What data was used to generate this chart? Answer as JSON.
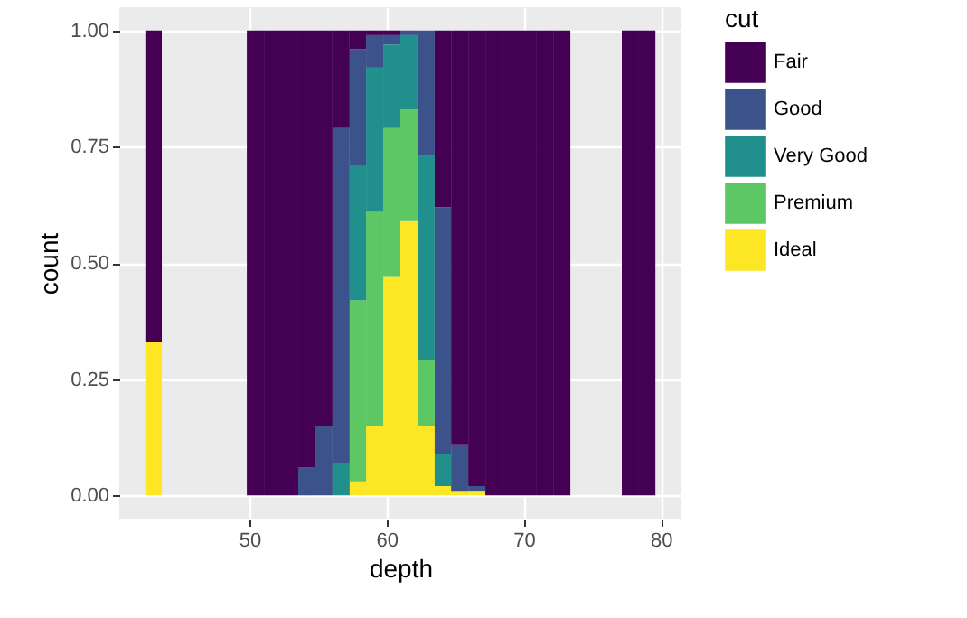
{
  "chart_data": {
    "type": "bar",
    "xlabel": "depth",
    "ylabel": "count",
    "legend_title": "cut",
    "stacked": true,
    "grid": true,
    "legend": "right",
    "x": [
      43.0,
      44.2,
      45.5,
      46.7,
      48.0,
      49.2,
      50.4,
      51.7,
      52.9,
      54.2,
      55.4,
      56.7,
      57.9,
      59.1,
      60.4,
      61.6,
      62.9,
      64.1,
      65.3,
      66.6,
      67.8,
      69.1,
      70.3,
      71.6,
      72.8,
      74.0,
      75.3,
      76.5,
      77.8,
      79.0
    ],
    "xlim": [
      40.5,
      81.5
    ],
    "xticks": [
      50,
      60,
      70,
      80
    ],
    "ylim": [
      -0.05,
      1.05
    ],
    "yticks": [
      {
        "value": 0,
        "label": "0.00"
      },
      {
        "value": 0.25,
        "label": "0.25"
      },
      {
        "value": 0.5,
        "label": "0.50"
      },
      {
        "value": 0.75,
        "label": "0.75"
      },
      {
        "value": 1,
        "label": "1.00"
      }
    ],
    "series": [
      {
        "name": "Ideal",
        "color": "#fde725",
        "values": [
          0.33,
          0,
          0,
          0,
          0,
          0,
          0,
          0,
          0,
          0,
          0,
          0,
          0.03,
          0.15,
          0.47,
          0.59,
          0.15,
          0.02,
          0.01,
          0.01,
          0,
          0,
          0,
          0,
          0,
          0,
          0,
          0,
          0,
          0
        ]
      },
      {
        "name": "Premium",
        "color": "#5dc863",
        "values": [
          0,
          0,
          0,
          0,
          0,
          0,
          0,
          0,
          0,
          0,
          0,
          0,
          0.39,
          0.46,
          0.32,
          0.24,
          0.14,
          0,
          0,
          0,
          0,
          0,
          0,
          0,
          0,
          0,
          0,
          0,
          0,
          0
        ]
      },
      {
        "name": "Very Good",
        "color": "#21908c",
        "values": [
          0,
          0,
          0,
          0,
          0,
          0,
          0,
          0,
          0,
          0,
          0,
          0.07,
          0.29,
          0.31,
          0.18,
          0.16,
          0.44,
          0.07,
          0,
          0,
          0,
          0,
          0,
          0,
          0,
          0,
          0,
          0,
          0,
          0
        ]
      },
      {
        "name": "Good",
        "color": "#3b528b",
        "values": [
          0,
          0,
          0,
          0,
          0,
          0,
          0,
          0,
          0,
          0.06,
          0.15,
          0.72,
          0.25,
          0.07,
          0.02,
          0.01,
          0.27,
          0.53,
          0.1,
          0.01,
          0,
          0,
          0,
          0,
          0,
          0,
          0,
          0,
          0,
          0
        ]
      },
      {
        "name": "Fair",
        "color": "#440154",
        "values": [
          0.67,
          0,
          0,
          0,
          0,
          0,
          1,
          1,
          1,
          0.94,
          0.85,
          0.21,
          0.04,
          0.01,
          0.01,
          0,
          0,
          0.38,
          0.89,
          0.98,
          1,
          1,
          1,
          1,
          1,
          0,
          0,
          0,
          1,
          1
        ]
      }
    ]
  }
}
